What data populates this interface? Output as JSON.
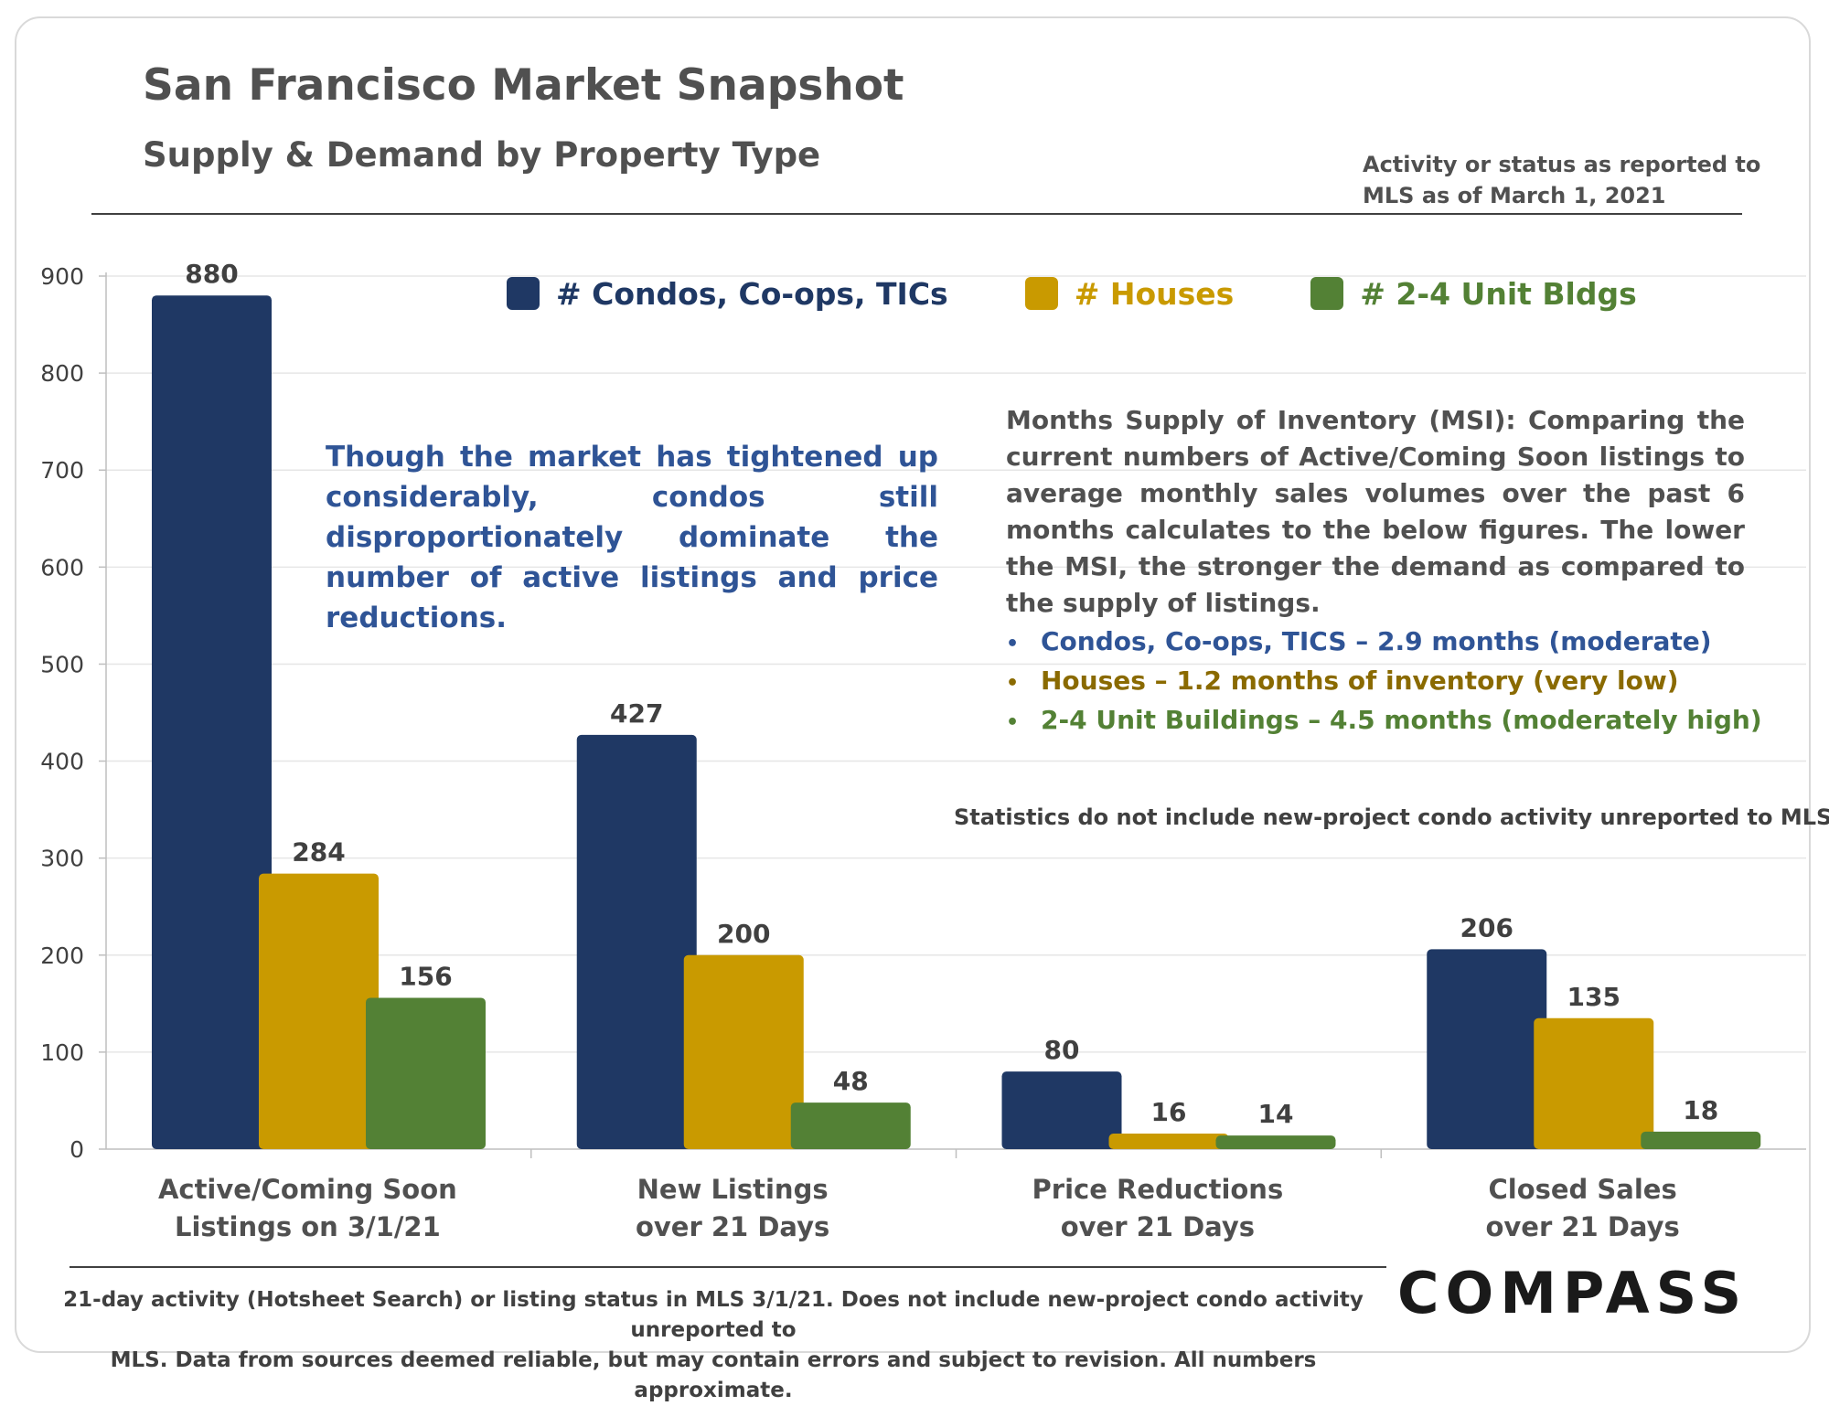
{
  "header": {
    "title": "San Francisco Market Snapshot",
    "subtitle": "Supply & Demand by Property Type",
    "as_of_line1": "Activity or status as reported to",
    "as_of_line2": "MLS as of March 1, 2021"
  },
  "chart_data": {
    "type": "bar",
    "categories": [
      [
        "Active/Coming Soon",
        "Listings on 3/1/21"
      ],
      [
        "New Listings",
        "over 21 Days"
      ],
      [
        "Price Reductions",
        "over 21 Days"
      ],
      [
        "Closed Sales",
        "over 21 Days"
      ]
    ],
    "series": [
      {
        "name": "# Condos, Co-ops, TICs",
        "color": "#1f3864",
        "values": [
          880,
          427,
          80,
          206
        ]
      },
      {
        "name": "# Houses",
        "color": "#c99a00",
        "values": [
          284,
          200,
          16,
          135
        ]
      },
      {
        "name": "# 2-4 Unit Bldgs",
        "color": "#538135",
        "values": [
          156,
          48,
          14,
          18
        ]
      }
    ],
    "ylim": [
      0,
      900
    ],
    "yticks": [
      0,
      100,
      200,
      300,
      400,
      500,
      600,
      700,
      800,
      900
    ],
    "grid": true,
    "legend_position": "top"
  },
  "legend_colors": [
    "#1f3864",
    "#c99a00",
    "#538135"
  ],
  "annotations": {
    "left_note": "Though the market has tightened up considerably, condos still disproportionately dominate the number of active listings and price reductions.",
    "msi_intro": "Months Supply of Inventory (MSI): Comparing the current numbers of Active/Coming Soon listings to average monthly sales volumes over the past 6 months calculates to the below figures. The lower the MSI, the stronger the demand as compared to the supply of listings.",
    "msi_items": [
      {
        "text": "Condos, Co-ops, TICS – 2.9 months (moderate)",
        "color": "#2f5496"
      },
      {
        "text": "Houses – 1.2 months of inventory (very low)",
        "color": "#8a6a00"
      },
      {
        "text": "2-4 Unit Buildings – 4.5 months (moderately high)",
        "color": "#538135"
      }
    ],
    "stats_note": "Statistics do not include new-project condo activity unreported to MLS."
  },
  "footer": {
    "line1": "21-day activity (Hotsheet Search) or listing status in MLS 3/1/21. Does not include new-project condo activity unreported to",
    "line2": "MLS. Data from sources deemed reliable, but may contain errors and subject to revision. All numbers approximate.",
    "logo": "COMPASS"
  }
}
